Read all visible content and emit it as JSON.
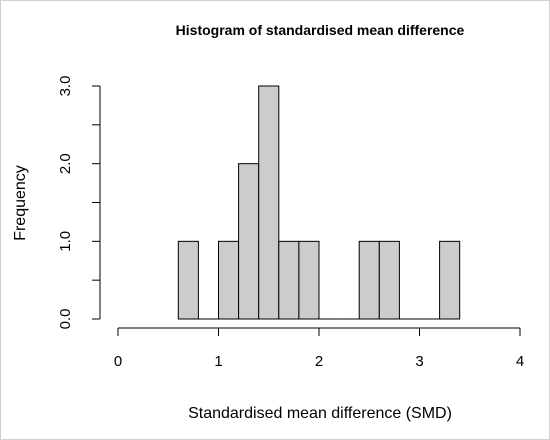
{
  "chart_data": {
    "type": "bar",
    "title": "Histogram of standardised mean difference",
    "xlabel": "Standardised mean difference (SMD)",
    "ylabel": "Frequency",
    "xlim": [
      0,
      4
    ],
    "ylim": [
      0,
      3
    ],
    "x_ticks": [
      0,
      1,
      2,
      3,
      4
    ],
    "x_tick_labels": [
      "0",
      "1",
      "2",
      "3",
      "4"
    ],
    "y_ticks": [
      0,
      1,
      2,
      3
    ],
    "y_tick_labels": [
      "0.0",
      "1.0",
      "2.0",
      "3.0"
    ],
    "bins": [
      {
        "start": 0.6,
        "end": 0.8,
        "count": 1
      },
      {
        "start": 0.8,
        "end": 1.0,
        "count": 0
      },
      {
        "start": 1.0,
        "end": 1.2,
        "count": 1
      },
      {
        "start": 1.2,
        "end": 1.4,
        "count": 2
      },
      {
        "start": 1.4,
        "end": 1.6,
        "count": 3
      },
      {
        "start": 1.6,
        "end": 1.8,
        "count": 1
      },
      {
        "start": 1.8,
        "end": 2.0,
        "count": 1
      },
      {
        "start": 2.0,
        "end": 2.2,
        "count": 0
      },
      {
        "start": 2.2,
        "end": 2.4,
        "count": 0
      },
      {
        "start": 2.4,
        "end": 2.6,
        "count": 1
      },
      {
        "start": 2.6,
        "end": 2.8,
        "count": 1
      },
      {
        "start": 2.8,
        "end": 3.0,
        "count": 0
      },
      {
        "start": 3.0,
        "end": 3.2,
        "count": 0
      },
      {
        "start": 3.2,
        "end": 3.4,
        "count": 1
      }
    ],
    "bar_fill": "#cccccc",
    "bar_stroke": "#000000",
    "grid": false,
    "legend": "none"
  }
}
